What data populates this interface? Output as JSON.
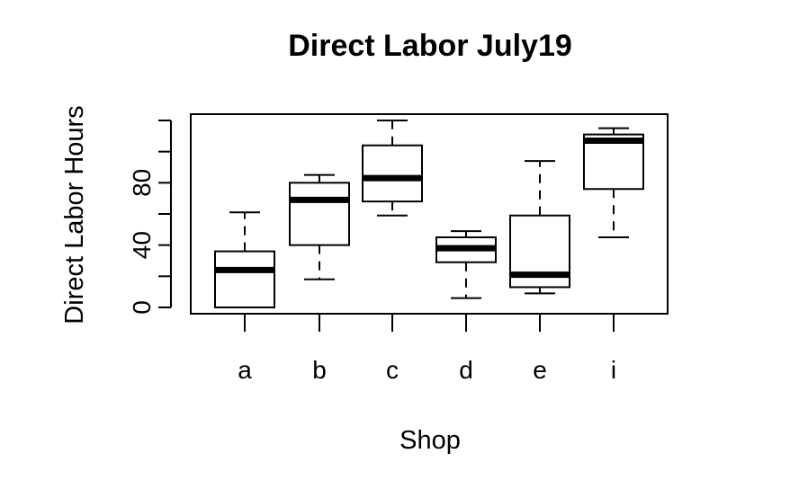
{
  "chart_data": {
    "type": "boxplot",
    "title": "Direct Labor July19",
    "xlabel": "Shop",
    "ylabel": "Direct Labor Hours",
    "categories": [
      "a",
      "b",
      "c",
      "d",
      "e",
      "i"
    ],
    "yticks": [
      0,
      20,
      40,
      60,
      80,
      100,
      120
    ],
    "ytick_labels": [
      "0",
      "",
      "40",
      "",
      "80",
      "",
      ""
    ],
    "ylim": [
      -5,
      125
    ],
    "grid": false,
    "legend": "none",
    "boxes": [
      {
        "category": "a",
        "whisker_low": 0,
        "q1": 0,
        "median": 24,
        "q3": 36,
        "whisker_high": 61
      },
      {
        "category": "b",
        "whisker_low": 18,
        "q1": 40,
        "median": 69,
        "q3": 80,
        "whisker_high": 85
      },
      {
        "category": "c",
        "whisker_low": 59,
        "q1": 68,
        "median": 83,
        "q3": 104,
        "whisker_high": 120
      },
      {
        "category": "d",
        "whisker_low": 6,
        "q1": 29,
        "median": 38,
        "q3": 45,
        "whisker_high": 49
      },
      {
        "category": "e",
        "whisker_low": 9,
        "q1": 13,
        "median": 21,
        "q3": 59,
        "whisker_high": 94
      },
      {
        "category": "i",
        "whisker_low": 45,
        "q1": 76,
        "median": 107,
        "q3": 111,
        "whisker_high": 115
      }
    ]
  }
}
